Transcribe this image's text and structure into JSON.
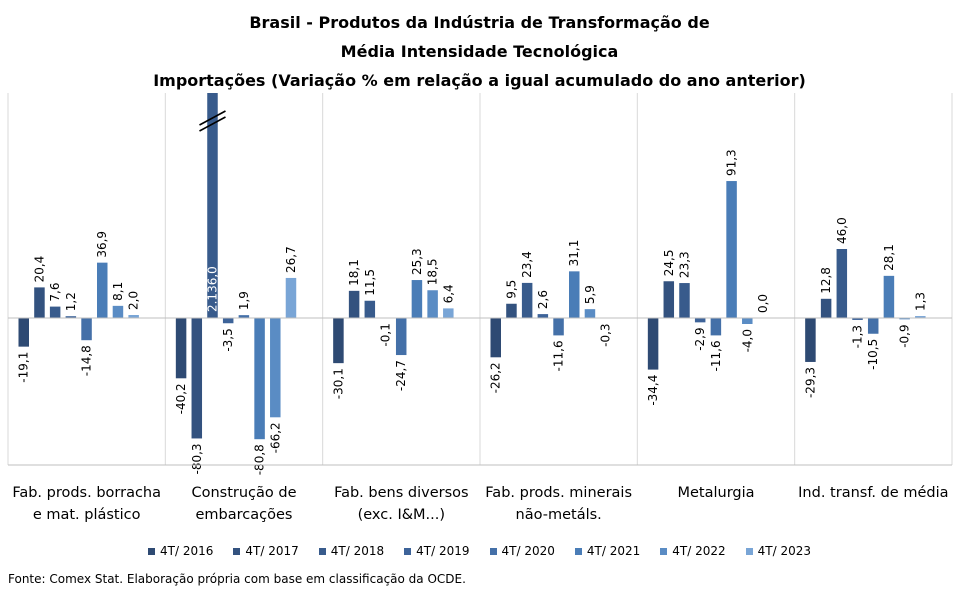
{
  "chart_data": {
    "type": "bar",
    "title": [
      "Brasil - Produtos da Indústria de Transformação de",
      "Média Intensidade Tecnológica",
      "Importações (Variação % em relação a igual acumulado do ano anterior)"
    ],
    "categories": [
      [
        "Fab. prods. borracha",
        "e mat. plástico"
      ],
      [
        "Construção de",
        "embarcações"
      ],
      [
        "Fab. bens diversos",
        "(exc. I&M...)"
      ],
      [
        "Fab. prods. minerais",
        "não-metáls."
      ],
      [
        "Metalurgia"
      ],
      [
        "Ind. transf. de média"
      ]
    ],
    "series": [
      {
        "name": "4T/ 2016",
        "color": "#2e4a73",
        "values": [
          -19.1,
          -40.2,
          -30.1,
          -26.2,
          -34.4,
          -29.3
        ],
        "labels": [
          "-19,1",
          "-40,2",
          "-30,1",
          "-26,2",
          "-34,4",
          "-29,3"
        ]
      },
      {
        "name": "4T/ 2017",
        "color": "#33527f",
        "values": [
          20.4,
          -80.3,
          18.1,
          9.5,
          24.5,
          12.8
        ],
        "labels": [
          "20,4",
          "-80,3",
          "18,1",
          "9,5",
          "24,5",
          "12,8"
        ]
      },
      {
        "name": "4T/ 2018",
        "color": "#385b8c",
        "values": [
          7.6,
          2136.0,
          11.5,
          23.4,
          23.3,
          46.0
        ],
        "labels": [
          "7,6",
          "2.136,0",
          "11,5",
          "23,4",
          "23,3",
          "46,0"
        ]
      },
      {
        "name": "4T/ 2019",
        "color": "#3d6399",
        "values": [
          1.2,
          -3.5,
          -0.1,
          2.6,
          -2.9,
          -1.3
        ],
        "labels": [
          "1,2",
          "-3,5",
          "-0,1",
          "2,6",
          "-2,9",
          "-1,3"
        ]
      },
      {
        "name": "4T/ 2020",
        "color": "#4470a8",
        "values": [
          -14.8,
          1.9,
          -24.7,
          -11.6,
          -11.6,
          -10.5
        ],
        "labels": [
          "-14,8",
          "1,9",
          "-24,7",
          "-11,6",
          "-11,6",
          "-10,5"
        ]
      },
      {
        "name": "4T/ 2021",
        "color": "#4a7db7",
        "values": [
          36.9,
          -80.8,
          25.3,
          31.1,
          91.3,
          28.1
        ],
        "labels": [
          "36,9",
          "-80,8",
          "25,3",
          "31,1",
          "91,3",
          "28,1"
        ]
      },
      {
        "name": "4T/ 2022",
        "color": "#5a8cc4",
        "values": [
          8.1,
          -66.2,
          18.5,
          5.9,
          -4.0,
          -0.9
        ],
        "labels": [
          "8,1",
          "-66,2",
          "18,5",
          "5,9",
          "-4,0",
          "-0,9"
        ]
      },
      {
        "name": "4T/ 2023",
        "color": "#79a5d6",
        "values": [
          2.0,
          26.7,
          6.4,
          -0.3,
          0.0,
          1.3
        ],
        "labels": [
          "2,0",
          "26,7",
          "6,4",
          "-0,3",
          "0,0",
          "1,3"
        ]
      }
    ],
    "ylim": [
      -100,
      150
    ],
    "axis_break": {
      "series": "4T/ 2018",
      "category": "Construção de embarcações",
      "value": 2136.0
    },
    "grid": false,
    "legend": "bottom"
  },
  "source": "Fonte: Comex Stat. Elaboração própria com base em classificação da OCDE."
}
